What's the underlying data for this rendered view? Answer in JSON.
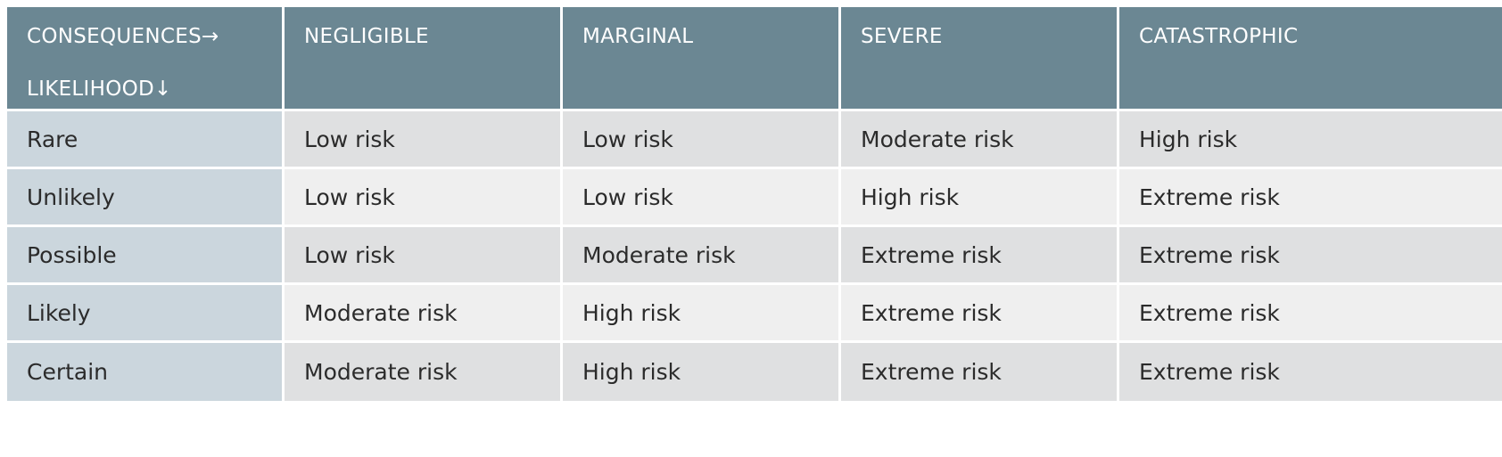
{
  "header": {
    "corner_line1": "CONSEQUENCES→",
    "corner_line2": "LIKELIHOOD↓",
    "columns": [
      "NEGLIGIBLE",
      "MARGINAL",
      "SEVERE",
      "CATASTROPHIC"
    ]
  },
  "rows": [
    {
      "likelihood": "Rare",
      "cells": [
        "Low risk",
        "Low risk",
        "Moderate risk",
        "High risk"
      ]
    },
    {
      "likelihood": "Unlikely",
      "cells": [
        "Low risk",
        "Low risk",
        "High risk",
        "Extreme risk"
      ]
    },
    {
      "likelihood": "Possible",
      "cells": [
        "Low risk",
        "Moderate risk",
        "Extreme risk",
        "Extreme risk"
      ]
    },
    {
      "likelihood": "Likely",
      "cells": [
        "Moderate risk",
        "High risk",
        "Extreme risk",
        "Extreme risk"
      ]
    },
    {
      "likelihood": "Certain",
      "cells": [
        "Moderate risk",
        "High risk",
        "Extreme risk",
        "Extreme risk"
      ]
    }
  ],
  "colors": {
    "header_bg": "#6b8793",
    "row_label_bg": "#cbd6dd",
    "cell_bg_alt_dark": "#dfe0e1",
    "cell_bg_alt_light": "#efefef"
  }
}
